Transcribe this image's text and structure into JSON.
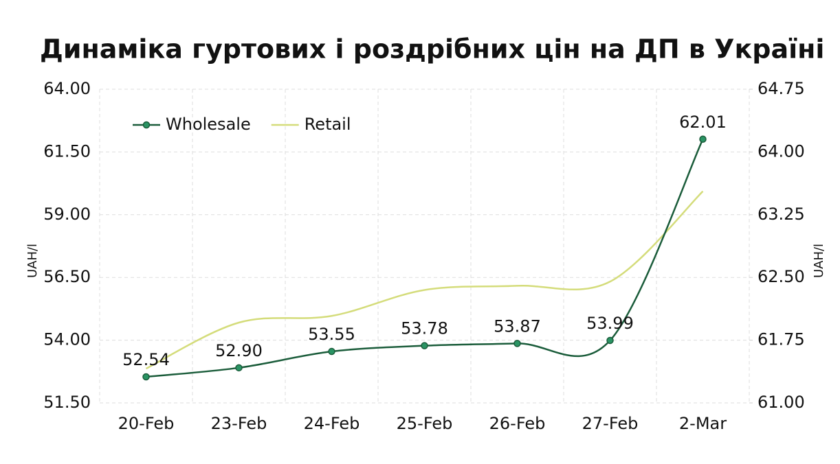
{
  "chart_data": {
    "type": "line",
    "title": "Динаміка гуртових і роздрібних цін на ДП в Україні",
    "y_label": "UAH/l",
    "y2_label": "UAH/l",
    "categories": [
      "20-Feb",
      "23-Feb",
      "24-Feb",
      "25-Feb",
      "26-Feb",
      "27-Feb",
      "2-Mar"
    ],
    "series": [
      {
        "name": "Wholesale",
        "color": "#1a5c3a",
        "marker_color": "#2a9464",
        "values": [
          52.54,
          52.9,
          53.55,
          53.78,
          53.87,
          53.99,
          62.01
        ],
        "value_labels": [
          "52.54",
          "52.90",
          "53.55",
          "53.78",
          "53.87",
          "53.99",
          "62.01"
        ]
      },
      {
        "name": "Retail",
        "color": "#d4dc7a",
        "axis": "y2",
        "values": [
          61.41,
          61.96,
          62.04,
          62.35,
          62.4,
          62.45,
          63.53
        ]
      }
    ],
    "ylim": [
      51.5,
      64
    ],
    "yticks": [
      {
        "value": 51.5,
        "label": "51.50"
      },
      {
        "value": 54,
        "label": "54.00"
      },
      {
        "value": 56.5,
        "label": "56.50"
      },
      {
        "value": 59,
        "label": "59.00"
      },
      {
        "value": 61.5,
        "label": "61.50"
      },
      {
        "value": 64,
        "label": "64.00"
      }
    ],
    "y2lim": [
      61,
      64.75
    ],
    "y2ticks": [
      {
        "value": 61,
        "label": "61.00"
      },
      {
        "value": 61.75,
        "label": "61.75"
      },
      {
        "value": 62.5,
        "label": "62.50"
      },
      {
        "value": 63.25,
        "label": "63.25"
      },
      {
        "value": 64,
        "label": "64.00"
      },
      {
        "value": 64.75,
        "label": "64.75"
      }
    ],
    "grid": true,
    "legend": "top-left"
  }
}
